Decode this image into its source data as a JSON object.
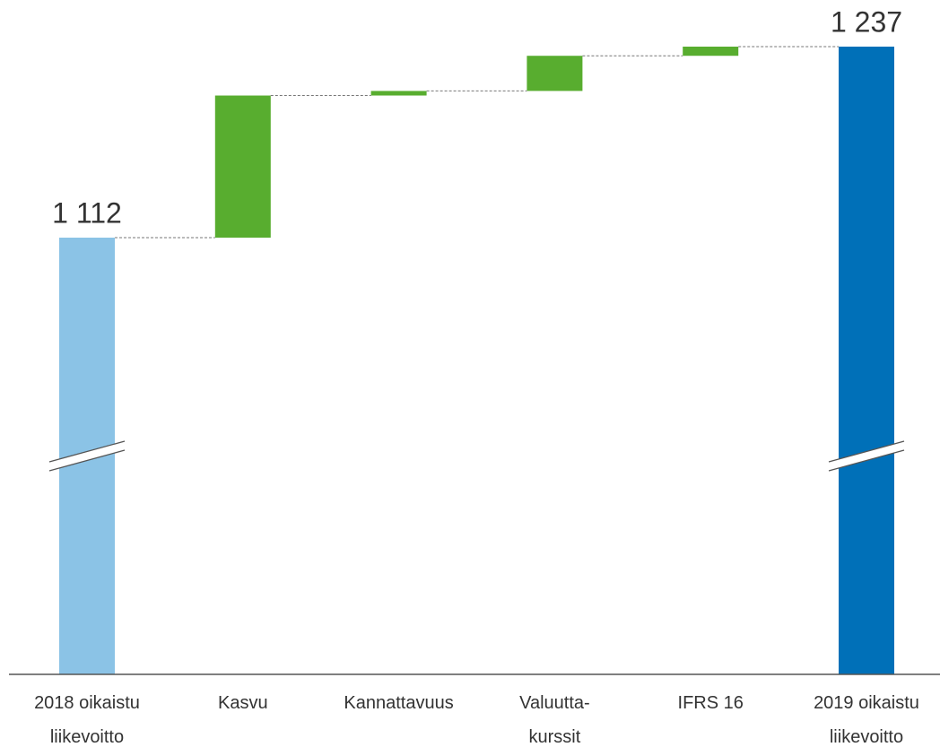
{
  "chart_data": {
    "type": "waterfall",
    "categories": [
      [
        "2018 oikaistu",
        "liikevoitto"
      ],
      [
        "Kasvu"
      ],
      [
        "Kannattavuus"
      ],
      [
        "Valuutta-",
        "kurssit"
      ],
      [
        "IFRS 16"
      ],
      [
        "2019 oikaistu",
        "liikevoitto"
      ]
    ],
    "measure": [
      "absolute",
      "relative",
      "relative",
      "relative",
      "relative",
      "total"
    ],
    "values": [
      1112,
      93,
      3,
      23,
      6,
      1237
    ],
    "value_labels": {
      "0": "1 112",
      "5": "1 237"
    },
    "colors": {
      "absolute": "#8bc3e6",
      "relative": "#58ad2f",
      "total": "#0070b8"
    },
    "axis_break": true
  }
}
